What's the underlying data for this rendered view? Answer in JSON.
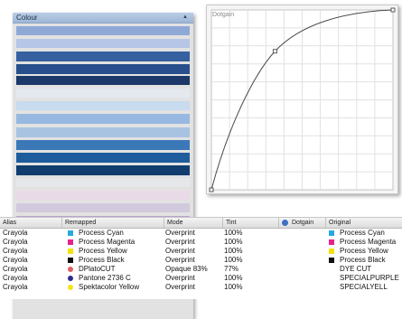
{
  "colour_panel": {
    "title": "Colour",
    "swatches": [
      {
        "color": "#8fa9d6"
      },
      {
        "color": "#b6c6e6"
      },
      {
        "color": "#36609f"
      },
      {
        "color": "#284f8c"
      },
      {
        "color": "#1b3868"
      },
      {
        "color": "#e4e8ef"
      },
      {
        "color": "#c8dbef"
      },
      {
        "color": "#97b8e0"
      },
      {
        "color": "#a8c2e2"
      },
      {
        "color": "#3b78b7"
      },
      {
        "color": "#1f5c9c"
      },
      {
        "color": "#123e6f"
      },
      {
        "color": "#e5e7e9"
      },
      {
        "color": "#e8dbe7"
      },
      {
        "color": "#d2c9dd"
      },
      {
        "color": "#b7a4cc"
      },
      {
        "color": "#c9a0c2"
      },
      {
        "color": "#d478ab"
      },
      {
        "color": "#d67ab0"
      },
      {
        "color": "#d26aa4"
      }
    ]
  },
  "dotgain_panel": {
    "title": "Dotgain",
    "curve": {
      "input_range": [
        0,
        100
      ],
      "output_range": [
        0,
        100
      ],
      "control_points": [
        {
          "x": 0,
          "y": 0
        },
        {
          "x": 35,
          "y": 77
        },
        {
          "x": 100,
          "y": 100
        }
      ]
    }
  },
  "table": {
    "headers": {
      "alias": "Alias",
      "remapped": "Remapped",
      "mode": "Mode",
      "tint": "Tint",
      "dotgain": "Dotgain",
      "original": "Original"
    },
    "rows": [
      {
        "alias": "Crayola",
        "remapped": "Process Cyan",
        "remapped_color": "#27a9e1",
        "remapped_shape": "square",
        "mode": "Overprint",
        "tint": "100%",
        "original": "Process Cyan",
        "original_color": "#27a9e1"
      },
      {
        "alias": "Crayola",
        "remapped": "Process Magenta",
        "remapped_color": "#e7238b",
        "remapped_shape": "square",
        "mode": "Overprint",
        "tint": "100%",
        "original": "Process Magenta",
        "original_color": "#e7238b"
      },
      {
        "alias": "Crayola",
        "remapped": "Process Yellow",
        "remapped_color": "#f4e10b",
        "remapped_shape": "square",
        "mode": "Overprint",
        "tint": "100%",
        "original": "Process Yellow",
        "original_color": "#f4e10b"
      },
      {
        "alias": "Crayola",
        "remapped": "Process Black",
        "remapped_color": "#111111",
        "remapped_shape": "square",
        "mode": "Overprint",
        "tint": "100%",
        "original": "Process Black",
        "original_color": "#111111"
      },
      {
        "alias": "Crayola",
        "remapped": "DPlatoCUT",
        "remapped_color": "#e15f62",
        "remapped_shape": "circle",
        "mode": "Opaque 83%",
        "tint": "77%",
        "original": "DYE CUT",
        "original_color": ""
      },
      {
        "alias": "Crayola",
        "remapped": "Pantone 2736 C",
        "remapped_color": "#2a2c8f",
        "remapped_shape": "circle",
        "mode": "Overprint",
        "tint": "100%",
        "original": "SPECIALPURPLE",
        "original_color": ""
      },
      {
        "alias": "Crayola",
        "remapped": "Spektacolor Yellow",
        "remapped_color": "#f5e21a",
        "remapped_shape": "circle",
        "mode": "Overprint",
        "tint": "100%",
        "original": "SPECIALYELL",
        "original_color": ""
      }
    ]
  }
}
